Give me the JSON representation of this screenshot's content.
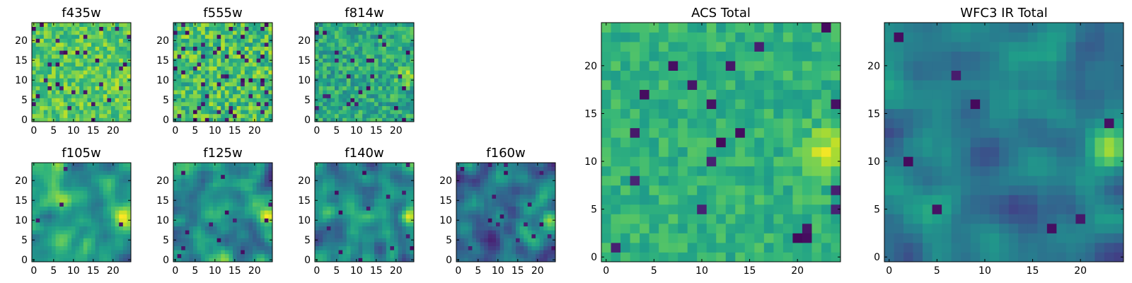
{
  "colormap": {
    "name": "viridis",
    "stops": [
      "#440154",
      "#482878",
      "#3e4989",
      "#31688e",
      "#26828e",
      "#1f9e89",
      "#35b779",
      "#6ece58",
      "#b5de2b",
      "#fde725"
    ]
  },
  "chart_data": [
    {
      "id": "f435w",
      "type": "heatmap",
      "title": "f435w",
      "grid_size": 25,
      "xticks": [
        "0",
        "5",
        "10",
        "15",
        "20"
      ],
      "yticks": [
        "0",
        "5",
        "10",
        "15",
        "20"
      ],
      "texture": "speckled",
      "mean_level": 0.74,
      "noise": 0.16,
      "hot_spot": [
        23,
        11
      ],
      "hot_strength": 0.06,
      "dark_pixel_fraction": 0.05,
      "seed": 11
    },
    {
      "id": "f555w",
      "type": "heatmap",
      "title": "f555w",
      "grid_size": 25,
      "xticks": [
        "0",
        "5",
        "10",
        "15",
        "20"
      ],
      "yticks": [
        "0",
        "5",
        "10",
        "15",
        "20"
      ],
      "texture": "speckled",
      "mean_level": 0.7,
      "noise": 0.2,
      "hot_spot": [
        23,
        11
      ],
      "hot_strength": 0.06,
      "dark_pixel_fraction": 0.07,
      "seed": 23
    },
    {
      "id": "f814w",
      "type": "heatmap",
      "title": "f814w",
      "grid_size": 25,
      "xticks": [
        "0",
        "5",
        "10",
        "15",
        "20"
      ],
      "yticks": [
        "0",
        "5",
        "10",
        "15",
        "20"
      ],
      "texture": "speckled",
      "mean_level": 0.6,
      "noise": 0.17,
      "hot_spot": [
        23,
        11
      ],
      "hot_strength": 0.3,
      "dark_pixel_fraction": 0.03,
      "seed": 37
    },
    {
      "id": "f105w",
      "type": "heatmap",
      "title": "f105w",
      "grid_size": 25,
      "xticks": [
        "0",
        "5",
        "10",
        "15",
        "20"
      ],
      "yticks": [
        "0",
        "5",
        "10",
        "15",
        "20"
      ],
      "texture": "smooth",
      "mean_level": 0.56,
      "noise": 0.13,
      "hot_spot": [
        23,
        11
      ],
      "hot_strength": 0.3,
      "dark_pixel_fraction": 0.01,
      "seed": 41
    },
    {
      "id": "f125w",
      "type": "heatmap",
      "title": "f125w",
      "grid_size": 25,
      "xticks": [
        "0",
        "5",
        "10",
        "15",
        "20"
      ],
      "yticks": [
        "0",
        "5",
        "10",
        "15",
        "20"
      ],
      "texture": "smooth",
      "mean_level": 0.5,
      "noise": 0.15,
      "hot_spot": [
        23,
        11
      ],
      "hot_strength": 0.34,
      "dark_pixel_fraction": 0.01,
      "seed": 53
    },
    {
      "id": "f140w",
      "type": "heatmap",
      "title": "f140w",
      "grid_size": 25,
      "xticks": [
        "0",
        "5",
        "10",
        "15",
        "20"
      ],
      "yticks": [
        "0",
        "5",
        "10",
        "15",
        "20"
      ],
      "texture": "smooth",
      "mean_level": 0.46,
      "noise": 0.15,
      "hot_spot": [
        23,
        11
      ],
      "hot_strength": 0.38,
      "dark_pixel_fraction": 0.01,
      "seed": 67
    },
    {
      "id": "f160w",
      "type": "heatmap",
      "title": "f160w",
      "grid_size": 25,
      "xticks": [
        "0",
        "5",
        "10",
        "15",
        "20"
      ],
      "yticks": [
        "0",
        "5",
        "10",
        "15",
        "20"
      ],
      "texture": "smooth",
      "mean_level": 0.38,
      "noise": 0.15,
      "hot_spot": [
        23,
        11
      ],
      "hot_strength": 0.45,
      "dark_pixel_fraction": 0.02,
      "seed": 79
    },
    {
      "id": "acs_total",
      "type": "heatmap",
      "title": "ACS Total",
      "grid_size": 25,
      "xticks": [
        "0",
        "5",
        "10",
        "15",
        "20"
      ],
      "yticks": [
        "0",
        "5",
        "10",
        "15",
        "20"
      ],
      "texture": "speckled",
      "mean_level": 0.64,
      "noise": 0.1,
      "hot_spot": [
        23,
        11
      ],
      "hot_strength": 0.32,
      "dark_pixel_fraction": 0.03,
      "seed": 97
    },
    {
      "id": "wfc3_ir_total",
      "type": "heatmap",
      "title": "WFC3 IR Total",
      "grid_size": 25,
      "xticks": [
        "0",
        "5",
        "10",
        "15",
        "20"
      ],
      "yticks": [
        "0",
        "5",
        "10",
        "15",
        "20"
      ],
      "texture": "smooth",
      "mean_level": 0.42,
      "noise": 0.11,
      "hot_spot": [
        23,
        11
      ],
      "hot_strength": 0.5,
      "dark_pixel_fraction": 0.01,
      "seed": 131
    }
  ]
}
